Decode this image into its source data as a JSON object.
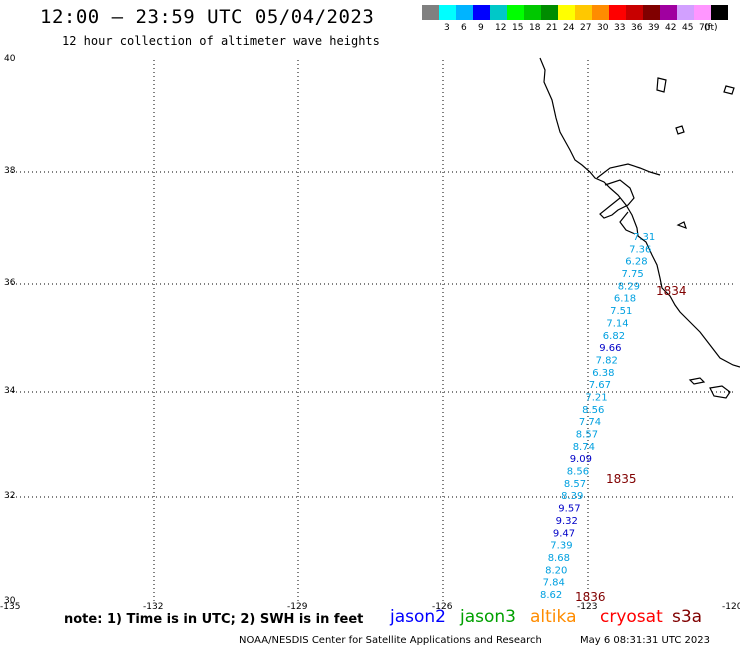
{
  "header": {
    "title": "12:00 – 23:59 UTC 05/04/2023",
    "subtitle": "12 hour collection of altimeter wave heights"
  },
  "color_scale": {
    "unit": "(ft)",
    "swatches": [
      {
        "color": "#808080",
        "label": ""
      },
      {
        "color": "#00ffff",
        "label": "3"
      },
      {
        "color": "#00b4ff",
        "label": "6"
      },
      {
        "color": "#0000ff",
        "label": "9"
      },
      {
        "color": "#00c8c8",
        "label": "12"
      },
      {
        "color": "#00ff00",
        "label": "15"
      },
      {
        "color": "#00c800",
        "label": "18"
      },
      {
        "color": "#008c00",
        "label": "21"
      },
      {
        "color": "#ffff00",
        "label": "24"
      },
      {
        "color": "#ffc800",
        "label": "27"
      },
      {
        "color": "#ff8c00",
        "label": "30"
      },
      {
        "color": "#ff0000",
        "label": "33"
      },
      {
        "color": "#c80000",
        "label": "36"
      },
      {
        "color": "#800000",
        "label": "39"
      },
      {
        "color": "#a000a0",
        "label": "42"
      },
      {
        "color": "#d2a0ff",
        "label": "45"
      },
      {
        "color": "#ff96ff",
        "label": "70"
      },
      {
        "color": "#000000",
        "label": ""
      }
    ]
  },
  "axes": {
    "lat_labels": [
      "40",
      "38",
      "36",
      "34",
      "32",
      "30"
    ],
    "lon_labels": [
      "-135",
      "-132",
      "-129",
      "-126",
      "-123",
      "-120"
    ]
  },
  "wave_heights": [
    {
      "v": "7.31",
      "c": "#00a0e0"
    },
    {
      "v": "7.36",
      "c": "#00a0e0"
    },
    {
      "v": "6.28",
      "c": "#00a0e0"
    },
    {
      "v": "7.75",
      "c": "#00a0e0"
    },
    {
      "v": "8.29",
      "c": "#00a0e0"
    },
    {
      "v": "6.18",
      "c": "#00a0e0"
    },
    {
      "v": "7.51",
      "c": "#00a0e0"
    },
    {
      "v": "7.14",
      "c": "#00a0e0"
    },
    {
      "v": "6.82",
      "c": "#00a0e0"
    },
    {
      "v": "9.66",
      "c": "#0000c8"
    },
    {
      "v": "7.82",
      "c": "#00a0e0"
    },
    {
      "v": "6.38",
      "c": "#00a0e0"
    },
    {
      "v": "7.67",
      "c": "#00a0e0"
    },
    {
      "v": "7.21",
      "c": "#00a0e0"
    },
    {
      "v": "8.56",
      "c": "#00a0e0"
    },
    {
      "v": "7.74",
      "c": "#00a0e0"
    },
    {
      "v": "8.57",
      "c": "#00a0e0"
    },
    {
      "v": "8.74",
      "c": "#00a0e0"
    },
    {
      "v": "9.09",
      "c": "#0000c8"
    },
    {
      "v": "8.56",
      "c": "#00a0e0"
    },
    {
      "v": "8.57",
      "c": "#00a0e0"
    },
    {
      "v": "8.39",
      "c": "#00a0e0"
    },
    {
      "v": "9.57",
      "c": "#0000c8"
    },
    {
      "v": "9.32",
      "c": "#0000c8"
    },
    {
      "v": "9.47",
      "c": "#0000c8"
    },
    {
      "v": "7.39",
      "c": "#00a0e0"
    },
    {
      "v": "8.68",
      "c": "#00a0e0"
    },
    {
      "v": "8.20",
      "c": "#00a0e0"
    },
    {
      "v": "7.84",
      "c": "#00a0e0"
    },
    {
      "v": "8.62",
      "c": "#00a0e0"
    }
  ],
  "time_labels": [
    "1834",
    "1835",
    "1836"
  ],
  "time_color": "#800000",
  "footer": {
    "note": "note: 1) Time is in UTC; 2) SWH is in feet",
    "satellites": [
      {
        "name": "jason2",
        "color": "#0000ff"
      },
      {
        "name": "jason3",
        "color": "#00a000"
      },
      {
        "name": "altika",
        "color": "#ff8c00"
      },
      {
        "name": "cryosat",
        "color": "#ff0000"
      },
      {
        "name": "s3a",
        "color": "#800000"
      }
    ],
    "credit": "NOAA/NESDIS Center for Satellite Applications and Research",
    "timestamp": "May  6 08:31:31 UTC 2023"
  }
}
